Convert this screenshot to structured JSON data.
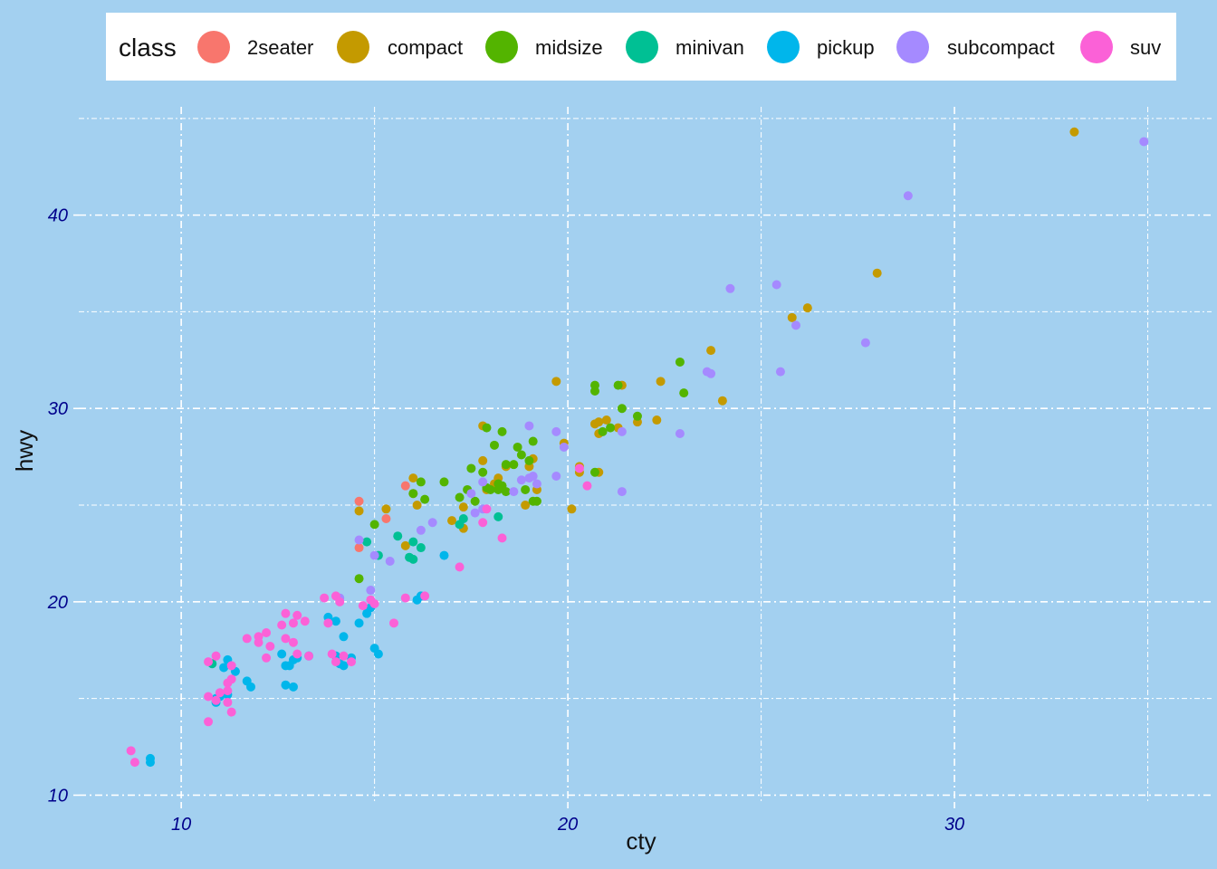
{
  "chart_data": {
    "type": "scatter",
    "title": "",
    "xlabel": "cty",
    "ylabel": "hwy",
    "xlim": [
      7.35,
      36.65
    ],
    "ylim": [
      9.6,
      45.6
    ],
    "x_ticks": [
      10,
      20,
      30
    ],
    "y_ticks": [
      10,
      20,
      30,
      40
    ],
    "x_tick_labels": [
      "10",
      "20",
      "30"
    ],
    "y_tick_labels": [
      "10",
      "20",
      "30",
      "40"
    ],
    "grid": true,
    "legend_placement": "top",
    "legend": {
      "title": "class",
      "entries": [
        "2seater",
        "compact",
        "midsize",
        "minivan",
        "pickup",
        "subcompact",
        "suv"
      ]
    },
    "colors": {
      "background": "#a3d0f0",
      "2seater": "#f8766d",
      "compact": "#c49a00",
      "midsize": "#53b400",
      "minivan": "#00c094",
      "pickup": "#00b6eb",
      "subcompact": "#a58aff",
      "suv": "#fb61d7",
      "tick_label": "#00008b",
      "grid": "#ffffff"
    },
    "series": [
      {
        "name": "2seater",
        "points": [
          [
            14.6,
            25.2
          ],
          [
            14.6,
            22.8
          ],
          [
            15.8,
            26.0
          ],
          [
            15.3,
            24.3
          ],
          [
            16.0,
            25.6
          ]
        ]
      },
      {
        "name": "compact",
        "points": [
          [
            33.1,
            44.3
          ],
          [
            28.0,
            37.0
          ],
          [
            26.2,
            35.2
          ],
          [
            25.8,
            34.7
          ],
          [
            23.7,
            33.0
          ],
          [
            24.0,
            30.4
          ],
          [
            22.4,
            31.4
          ],
          [
            21.4,
            31.2
          ],
          [
            19.7,
            31.4
          ],
          [
            21.0,
            29.4
          ],
          [
            20.8,
            29.3
          ],
          [
            20.7,
            29.2
          ],
          [
            21.3,
            29.0
          ],
          [
            21.8,
            29.3
          ],
          [
            22.3,
            29.4
          ],
          [
            20.8,
            28.7
          ],
          [
            19.9,
            28.2
          ],
          [
            19.1,
            27.4
          ],
          [
            19.0,
            27.0
          ],
          [
            20.3,
            27.0
          ],
          [
            20.8,
            26.7
          ],
          [
            20.3,
            26.7
          ],
          [
            20.1,
            24.8
          ],
          [
            18.9,
            25.0
          ],
          [
            19.2,
            25.8
          ],
          [
            18.2,
            26.4
          ],
          [
            18.1,
            26.1
          ],
          [
            18.4,
            27.0
          ],
          [
            17.8,
            27.3
          ],
          [
            17.9,
            25.8
          ],
          [
            17.3,
            24.9
          ],
          [
            17.0,
            24.2
          ],
          [
            17.3,
            23.8
          ],
          [
            16.0,
            26.4
          ],
          [
            16.1,
            25.0
          ],
          [
            15.8,
            22.9
          ],
          [
            15.3,
            24.8
          ],
          [
            14.6,
            24.7
          ],
          [
            17.8,
            29.1
          ]
        ]
      },
      {
        "name": "midsize",
        "points": [
          [
            22.9,
            32.4
          ],
          [
            23.0,
            30.8
          ],
          [
            21.3,
            31.2
          ],
          [
            20.7,
            31.2
          ],
          [
            20.7,
            30.9
          ],
          [
            21.4,
            30.0
          ],
          [
            21.8,
            29.6
          ],
          [
            21.1,
            29.0
          ],
          [
            20.9,
            28.8
          ],
          [
            20.7,
            26.7
          ],
          [
            18.3,
            28.8
          ],
          [
            18.1,
            28.1
          ],
          [
            18.7,
            28.0
          ],
          [
            19.1,
            28.3
          ],
          [
            18.8,
            27.6
          ],
          [
            18.4,
            27.1
          ],
          [
            19.0,
            27.3
          ],
          [
            18.6,
            27.1
          ],
          [
            17.5,
            26.9
          ],
          [
            17.8,
            26.7
          ],
          [
            16.2,
            26.2
          ],
          [
            16.8,
            26.2
          ],
          [
            17.4,
            25.8
          ],
          [
            17.9,
            25.9
          ],
          [
            18.2,
            26.1
          ],
          [
            18.4,
            25.7
          ],
          [
            18.0,
            25.8
          ],
          [
            18.3,
            26.0
          ],
          [
            18.9,
            25.8
          ],
          [
            19.1,
            25.2
          ],
          [
            19.2,
            25.2
          ],
          [
            17.6,
            25.2
          ],
          [
            17.2,
            25.4
          ],
          [
            16.0,
            25.6
          ],
          [
            16.3,
            25.3
          ],
          [
            15.0,
            24.0
          ],
          [
            14.6,
            21.2
          ],
          [
            17.9,
            29.0
          ],
          [
            18.2,
            25.8
          ]
        ]
      },
      {
        "name": "minivan",
        "points": [
          [
            15.6,
            23.4
          ],
          [
            16.0,
            23.1
          ],
          [
            15.9,
            22.3
          ],
          [
            16.0,
            22.2
          ],
          [
            16.2,
            22.8
          ],
          [
            17.3,
            24.3
          ],
          [
            17.2,
            24.0
          ],
          [
            18.2,
            24.4
          ],
          [
            14.8,
            23.1
          ],
          [
            15.1,
            22.4
          ],
          [
            10.8,
            16.8
          ]
        ]
      },
      {
        "name": "pickup",
        "points": [
          [
            9.2,
            11.9
          ],
          [
            9.2,
            11.7
          ],
          [
            10.9,
            14.8
          ],
          [
            10.9,
            15.0
          ],
          [
            11.0,
            15.1
          ],
          [
            11.2,
            15.2
          ],
          [
            11.2,
            17.0
          ],
          [
            11.1,
            16.6
          ],
          [
            11.4,
            16.4
          ],
          [
            11.7,
            15.9
          ],
          [
            11.8,
            15.6
          ],
          [
            12.6,
            17.3
          ],
          [
            12.7,
            16.7
          ],
          [
            12.9,
            17.0
          ],
          [
            12.8,
            16.7
          ],
          [
            12.7,
            15.7
          ],
          [
            12.9,
            15.6
          ],
          [
            13.0,
            17.1
          ],
          [
            13.3,
            17.2
          ],
          [
            13.8,
            19.2
          ],
          [
            14.0,
            19.0
          ],
          [
            14.0,
            17.2
          ],
          [
            14.1,
            16.8
          ],
          [
            14.2,
            16.7
          ],
          [
            14.4,
            17.1
          ],
          [
            14.2,
            18.2
          ],
          [
            14.6,
            18.9
          ],
          [
            14.8,
            19.4
          ],
          [
            14.9,
            19.7
          ],
          [
            15.0,
            17.6
          ],
          [
            15.1,
            17.3
          ],
          [
            16.1,
            20.1
          ],
          [
            16.2,
            20.3
          ],
          [
            16.8,
            22.4
          ]
        ]
      },
      {
        "name": "subcompact",
        "points": [
          [
            34.9,
            43.8
          ],
          [
            28.8,
            41.0
          ],
          [
            24.2,
            36.2
          ],
          [
            25.4,
            36.4
          ],
          [
            25.9,
            34.3
          ],
          [
            27.7,
            33.4
          ],
          [
            25.5,
            31.9
          ],
          [
            23.7,
            31.8
          ],
          [
            23.6,
            31.9
          ],
          [
            22.9,
            28.7
          ],
          [
            21.4,
            28.8
          ],
          [
            19.7,
            28.8
          ],
          [
            19.9,
            28.0
          ],
          [
            19.0,
            29.1
          ],
          [
            19.7,
            26.5
          ],
          [
            19.0,
            26.4
          ],
          [
            19.1,
            26.5
          ],
          [
            18.8,
            26.3
          ],
          [
            19.2,
            26.1
          ],
          [
            18.6,
            25.7
          ],
          [
            17.8,
            26.2
          ],
          [
            17.5,
            25.6
          ],
          [
            17.8,
            24.8
          ],
          [
            17.6,
            24.6
          ],
          [
            16.5,
            24.1
          ],
          [
            16.2,
            23.7
          ],
          [
            15.4,
            22.1
          ],
          [
            14.6,
            23.2
          ],
          [
            15.0,
            22.4
          ],
          [
            14.9,
            20.6
          ],
          [
            14.1,
            20.2
          ],
          [
            21.4,
            25.7
          ]
        ]
      },
      {
        "name": "suv",
        "points": [
          [
            8.7,
            12.3
          ],
          [
            8.8,
            11.7
          ],
          [
            10.7,
            15.1
          ],
          [
            10.9,
            14.9
          ],
          [
            11.0,
            15.3
          ],
          [
            11.2,
            15.4
          ],
          [
            11.2,
            14.8
          ],
          [
            11.3,
            14.3
          ],
          [
            10.7,
            13.8
          ],
          [
            11.2,
            15.8
          ],
          [
            11.3,
            16.0
          ],
          [
            11.3,
            16.7
          ],
          [
            10.7,
            16.9
          ],
          [
            10.9,
            17.2
          ],
          [
            11.7,
            18.1
          ],
          [
            12.0,
            18.2
          ],
          [
            12.0,
            17.9
          ],
          [
            12.2,
            18.4
          ],
          [
            12.2,
            17.1
          ],
          [
            12.3,
            17.7
          ],
          [
            12.6,
            18.8
          ],
          [
            12.7,
            19.4
          ],
          [
            12.9,
            18.9
          ],
          [
            12.7,
            18.1
          ],
          [
            13.0,
            19.3
          ],
          [
            12.9,
            17.9
          ],
          [
            13.0,
            17.3
          ],
          [
            13.2,
            19.0
          ],
          [
            13.3,
            17.2
          ],
          [
            13.8,
            18.9
          ],
          [
            13.7,
            20.2
          ],
          [
            14.0,
            20.3
          ],
          [
            14.1,
            20.0
          ],
          [
            13.9,
            17.3
          ],
          [
            14.0,
            16.9
          ],
          [
            14.2,
            17.2
          ],
          [
            14.4,
            16.9
          ],
          [
            14.7,
            19.8
          ],
          [
            14.9,
            20.1
          ],
          [
            15.0,
            19.9
          ],
          [
            15.5,
            18.9
          ],
          [
            15.8,
            20.2
          ],
          [
            16.3,
            20.3
          ],
          [
            17.2,
            21.8
          ],
          [
            17.8,
            24.1
          ],
          [
            17.9,
            24.8
          ],
          [
            18.3,
            23.3
          ],
          [
            20.3,
            26.9
          ],
          [
            20.5,
            26.0
          ]
        ]
      }
    ]
  }
}
